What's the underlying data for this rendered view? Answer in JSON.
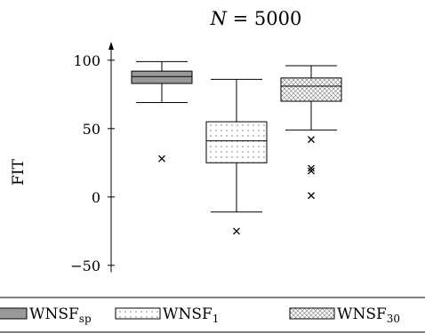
{
  "chart_data": {
    "type": "boxplot",
    "title": "N = 5000",
    "ylabel": "FIT",
    "xlabel": "",
    "ylim": [
      -55,
      118
    ],
    "yticks": [
      -50,
      0,
      50,
      100
    ],
    "grid": false,
    "legend_position": "bottom",
    "series": [
      {
        "name": "WNSF",
        "subscript": "sp",
        "fill": "gray",
        "whisker_low": 69,
        "q1": 83,
        "median": 88,
        "q3": 92,
        "whisker_high": 99,
        "outliers": [
          28
        ]
      },
      {
        "name": "WNSF",
        "subscript": "1",
        "fill": "dots",
        "whisker_low": -11,
        "q1": 25,
        "median": 41,
        "q3": 55,
        "whisker_high": 86,
        "outliers": [
          -25
        ]
      },
      {
        "name": "WNSF",
        "subscript": "30",
        "fill": "crosshatch",
        "whisker_low": 49,
        "q1": 70,
        "median": 81,
        "q3": 87,
        "whisker_high": 96,
        "outliers": [
          42,
          21,
          19,
          1
        ]
      }
    ]
  },
  "colors": {
    "gray_fill": "#999999",
    "pattern_stroke": "#777777",
    "axis": "#000000"
  }
}
